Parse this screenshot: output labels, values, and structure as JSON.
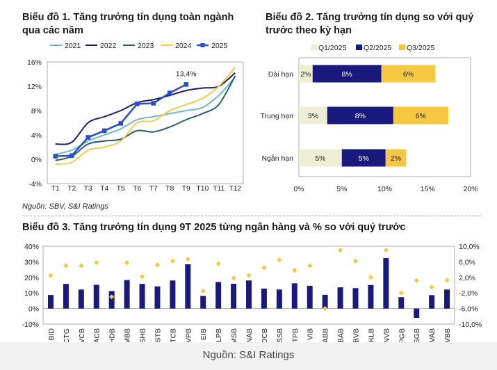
{
  "footer": {
    "source": "Nguồn: S&I Ratings"
  },
  "chart_data": [
    {
      "type": "line",
      "title": "Biểu đồ 1. Tăng trưởng tín dụng toàn ngành qua các năm",
      "source": "Nguồn: SBV, S&I Ratings",
      "categories": [
        "T1",
        "T2",
        "T3",
        "T4",
        "T5",
        "T6",
        "T7",
        "T8",
        "T9",
        "T10",
        "T11",
        "T12"
      ],
      "ylim": [
        -4,
        16
      ],
      "yticks": [
        "-4%",
        "0%",
        "4%",
        "8%",
        "12%",
        "16%"
      ],
      "annotation": "13,4%",
      "legend_position": "top",
      "series": [
        {
          "name": "2021",
          "color": "#6fb8c8",
          "values": [
            0.8,
            1.5,
            3.0,
            4.0,
            5.0,
            6.5,
            7.0,
            7.5,
            8.0,
            8.5,
            10.5,
            13.5
          ]
        },
        {
          "name": "2022",
          "color": "#1c1c6b",
          "values": [
            2.5,
            2.8,
            6.0,
            7.0,
            8.0,
            9.3,
            9.8,
            10.5,
            11.3,
            11.7,
            12.0,
            14.2
          ]
        },
        {
          "name": "2023",
          "color": "#1f5f6f",
          "values": [
            -0.2,
            0.5,
            2.5,
            3.0,
            3.3,
            4.7,
            4.5,
            5.3,
            6.5,
            7.5,
            9.0,
            13.7
          ]
        },
        {
          "name": "2024",
          "color": "#f4cc4a",
          "values": [
            -0.8,
            -0.5,
            1.5,
            2.0,
            3.0,
            6.0,
            6.3,
            8.0,
            9.0,
            10.0,
            12.0,
            15.1
          ]
        },
        {
          "name": "2025",
          "color": "#2a4fc9",
          "values": [
            0.5,
            0.6,
            3.6,
            4.7,
            5.9,
            9.1,
            9.2,
            10.9,
            12.3,
            null,
            null,
            null
          ]
        }
      ]
    },
    {
      "type": "bar",
      "title": "Biểu đồ 2. Tăng trưởng tín dụng so với quý trước theo kỳ hạn",
      "categories": [
        "Dài hạn",
        "Trung hạn",
        "Ngắn hạn"
      ],
      "xlim": [
        0,
        20
      ],
      "xticks": [
        "0%",
        "5%",
        "10%",
        "15%",
        "20%"
      ],
      "legend_position": "top",
      "series": [
        {
          "name": "Q1/2025",
          "color": "#eeeed6",
          "values": [
            1.6,
            3.3,
            5.0
          ],
          "labels": [
            "2%",
            "3%",
            "5%"
          ]
        },
        {
          "name": "Q2/2025",
          "color": "#1a1a7e",
          "values": [
            8.0,
            7.7,
            5.1
          ],
          "labels": [
            "8%",
            "8%",
            "5%"
          ]
        },
        {
          "name": "Q3/2025",
          "color": "#f6c842",
          "values": [
            6.3,
            6.4,
            2.4
          ],
          "labels": [
            "6%",
            "6%",
            "2%"
          ]
        }
      ]
    },
    {
      "type": "bar",
      "title": "Biểu đồ 3. Tăng trưởng tín dụng 9T 2025 từng ngân hàng và % so với quý trước",
      "categories": [
        "BID",
        "CTG",
        "VCB",
        "ACB",
        "HDB",
        "MBB",
        "SHB",
        "STB",
        "TCB",
        "VPB",
        "EIB",
        "LPB",
        "MSB",
        "NAB",
        "OCB",
        "SSB",
        "TPB",
        "VIB",
        "ABB",
        "BAB",
        "BVB",
        "KLB",
        "NVB",
        "PGB",
        "SGB",
        "VAB",
        "VBB"
      ],
      "ylim": [
        -10,
        40
      ],
      "yticks": [
        "-10%",
        "0%",
        "10%",
        "20%",
        "30%",
        "40%"
      ],
      "y2lim": [
        -10,
        10
      ],
      "y2ticks": [
        "-10,0%",
        "-6,0%",
        "-2,0%",
        "2,0%",
        "6,0%",
        "10,0%"
      ],
      "series": [
        {
          "name": "bars",
          "color": "#1a1a7e",
          "axis": "left",
          "values": [
            8.7,
            15.8,
            12.2,
            15.2,
            11.2,
            18.3,
            15.8,
            14.2,
            18.0,
            28.4,
            8.1,
            17.0,
            15.9,
            18.0,
            12.8,
            12.2,
            16.2,
            14.6,
            8.8,
            13.6,
            13.1,
            15.1,
            32.4,
            7.3,
            -6.0,
            8.6,
            12.2
          ]
        },
        {
          "name": "markers",
          "color": "#f6c842",
          "axis": "right",
          "values": [
            2.5,
            5.0,
            5.0,
            5.8,
            -3.0,
            5.8,
            2.2,
            5.2,
            6.2,
            6.7,
            -1.5,
            5.5,
            1.8,
            2.5,
            4.5,
            6.5,
            3.8,
            5.0,
            -6.0,
            9.0,
            6.2,
            2.0,
            9.0,
            -2.0,
            1.2,
            -0.5,
            1.3
          ]
        }
      ]
    }
  ]
}
